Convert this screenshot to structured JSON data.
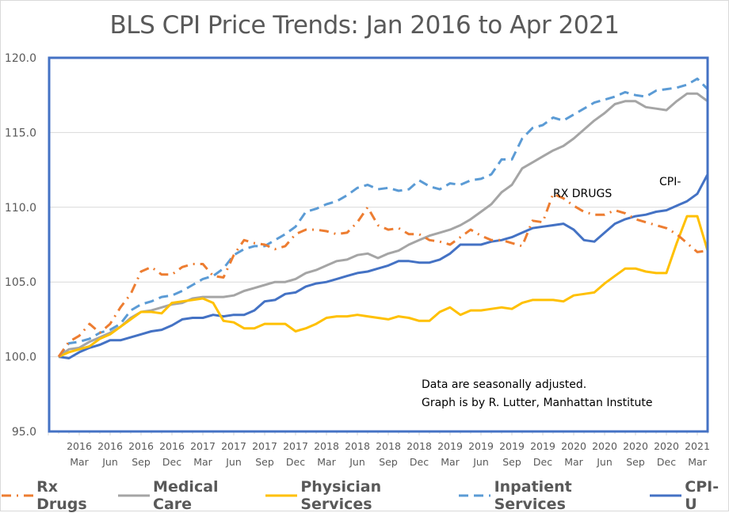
{
  "chart_data": {
    "type": "line",
    "title": "BLS CPI Price Trends: Jan 2016 to Apr 2021",
    "xlabel": "",
    "ylabel": "",
    "ylim": [
      95.0,
      120.0
    ],
    "yticks": [
      "95.0",
      "100.0",
      "105.0",
      "110.0",
      "115.0",
      "120.0"
    ],
    "grid": true,
    "legend_position": "bottom",
    "x": [
      "2016-01",
      "2016-02",
      "2016-03",
      "2016-04",
      "2016-05",
      "2016-06",
      "2016-07",
      "2016-08",
      "2016-09",
      "2016-10",
      "2016-11",
      "2016-12",
      "2017-01",
      "2017-02",
      "2017-03",
      "2017-04",
      "2017-05",
      "2017-06",
      "2017-07",
      "2017-08",
      "2017-09",
      "2017-10",
      "2017-11",
      "2017-12",
      "2018-01",
      "2018-02",
      "2018-03",
      "2018-04",
      "2018-05",
      "2018-06",
      "2018-07",
      "2018-08",
      "2018-09",
      "2018-10",
      "2018-11",
      "2018-12",
      "2019-01",
      "2019-02",
      "2019-03",
      "2019-04",
      "2019-05",
      "2019-06",
      "2019-07",
      "2019-08",
      "2019-09",
      "2019-10",
      "2019-11",
      "2019-12",
      "2020-01",
      "2020-02",
      "2020-03",
      "2020-04",
      "2020-05",
      "2020-06",
      "2020-07",
      "2020-08",
      "2020-09",
      "2020-10",
      "2020-11",
      "2020-12",
      "2021-01",
      "2021-02",
      "2021-03",
      "2021-04"
    ],
    "xtick_labels": [
      {
        "index": 2,
        "year": "2016",
        "month": "Mar"
      },
      {
        "index": 5,
        "year": "2016",
        "month": "Jun"
      },
      {
        "index": 8,
        "year": "2016",
        "month": "Sep"
      },
      {
        "index": 11,
        "year": "2016",
        "month": "Dec"
      },
      {
        "index": 14,
        "year": "2017",
        "month": "Mar"
      },
      {
        "index": 17,
        "year": "2017",
        "month": "Jun"
      },
      {
        "index": 20,
        "year": "2017",
        "month": "Sep"
      },
      {
        "index": 23,
        "year": "2017",
        "month": "Dec"
      },
      {
        "index": 26,
        "year": "2018",
        "month": "Mar"
      },
      {
        "index": 29,
        "year": "2018",
        "month": "Jun"
      },
      {
        "index": 32,
        "year": "2018",
        "month": "Sep"
      },
      {
        "index": 35,
        "year": "2018",
        "month": "Dec"
      },
      {
        "index": 38,
        "year": "2019",
        "month": "Mar"
      },
      {
        "index": 41,
        "year": "2019",
        "month": "Jun"
      },
      {
        "index": 44,
        "year": "2019",
        "month": "Sep"
      },
      {
        "index": 47,
        "year": "2019",
        "month": "Dec"
      },
      {
        "index": 50,
        "year": "2020",
        "month": "Mar"
      },
      {
        "index": 53,
        "year": "2020",
        "month": "Jun"
      },
      {
        "index": 56,
        "year": "2020",
        "month": "Sep"
      },
      {
        "index": 59,
        "year": "2020",
        "month": "Dec"
      },
      {
        "index": 62,
        "year": "2021",
        "month": "Mar"
      }
    ],
    "series": [
      {
        "name": "Rx Drugs",
        "color": "#ED7D31",
        "style": "dash-dot",
        "values": [
          100.0,
          101.0,
          101.4,
          102.2,
          101.6,
          102.2,
          103.3,
          104.2,
          105.7,
          106.0,
          105.5,
          105.5,
          106.0,
          106.2,
          106.2,
          105.4,
          105.3,
          106.8,
          107.8,
          107.6,
          107.5,
          107.2,
          107.4,
          108.2,
          108.5,
          108.5,
          108.4,
          108.2,
          108.3,
          109.0,
          110.0,
          108.8,
          108.5,
          108.6,
          108.2,
          108.2,
          107.8,
          107.7,
          107.5,
          108.0,
          108.5,
          108.1,
          107.8,
          107.8,
          107.6,
          107.4,
          109.1,
          109.0,
          110.9,
          110.6,
          110.1,
          109.7,
          109.5,
          109.5,
          109.8,
          109.6,
          109.2,
          109.0,
          108.8,
          108.6,
          108.2,
          107.6,
          107.0,
          107.1
        ]
      },
      {
        "name": "Medical Care",
        "color": "#A5A5A5",
        "style": "solid",
        "values": [
          100.0,
          100.5,
          100.6,
          101.0,
          101.3,
          101.6,
          102.0,
          102.6,
          103.0,
          103.1,
          103.3,
          103.5,
          103.6,
          103.9,
          104.0,
          104.0,
          104.0,
          104.1,
          104.4,
          104.6,
          104.8,
          105.0,
          105.0,
          105.2,
          105.6,
          105.8,
          106.1,
          106.4,
          106.5,
          106.8,
          106.9,
          106.6,
          106.9,
          107.1,
          107.5,
          107.8,
          108.1,
          108.3,
          108.5,
          108.8,
          109.2,
          109.7,
          110.2,
          111.0,
          111.5,
          112.6,
          113.0,
          113.4,
          113.8,
          114.1,
          114.6,
          115.2,
          115.8,
          116.3,
          116.9,
          117.1,
          117.1,
          116.7,
          116.6,
          116.5,
          117.1,
          117.6,
          117.6,
          117.1
        ]
      },
      {
        "name": "Physician Services",
        "color": "#FFC000",
        "style": "solid",
        "values": [
          100.0,
          100.3,
          100.5,
          100.7,
          101.2,
          101.5,
          102.0,
          102.5,
          103.0,
          103.0,
          102.9,
          103.6,
          103.7,
          103.8,
          103.9,
          103.6,
          102.4,
          102.3,
          101.9,
          101.9,
          102.2,
          102.2,
          102.2,
          101.7,
          101.9,
          102.2,
          102.6,
          102.7,
          102.7,
          102.8,
          102.7,
          102.6,
          102.5,
          102.7,
          102.6,
          102.4,
          102.4,
          103.0,
          103.3,
          102.8,
          103.1,
          103.1,
          103.2,
          103.3,
          103.2,
          103.6,
          103.8,
          103.8,
          103.8,
          103.7,
          104.1,
          104.2,
          104.3,
          104.9,
          105.4,
          105.9,
          105.9,
          105.7,
          105.6,
          105.6,
          107.6,
          109.4,
          109.4,
          107.1
        ]
      },
      {
        "name": "Inpatient Services",
        "color": "#5B9BD5",
        "style": "dashed",
        "values": [
          100.0,
          100.9,
          101.0,
          101.2,
          101.6,
          101.8,
          102.2,
          103.1,
          103.5,
          103.7,
          104.0,
          104.1,
          104.4,
          104.8,
          105.2,
          105.4,
          105.9,
          106.8,
          107.2,
          107.4,
          107.4,
          107.8,
          108.2,
          108.7,
          109.7,
          109.9,
          110.2,
          110.4,
          110.8,
          111.3,
          111.5,
          111.2,
          111.3,
          111.1,
          111.2,
          111.8,
          111.4,
          111.2,
          111.6,
          111.5,
          111.8,
          111.9,
          112.2,
          113.2,
          113.2,
          114.6,
          115.3,
          115.5,
          116.0,
          115.8,
          116.2,
          116.6,
          117.0,
          117.2,
          117.4,
          117.7,
          117.5,
          117.4,
          117.8,
          117.9,
          118.0,
          118.2,
          118.6,
          117.9
        ]
      },
      {
        "name": "CPI-U",
        "color": "#4472C4",
        "style": "solid",
        "values": [
          100.0,
          99.9,
          100.3,
          100.6,
          100.8,
          101.1,
          101.1,
          101.3,
          101.5,
          101.7,
          101.8,
          102.1,
          102.5,
          102.6,
          102.6,
          102.8,
          102.7,
          102.8,
          102.8,
          103.1,
          103.7,
          103.8,
          104.2,
          104.3,
          104.7,
          104.9,
          105.0,
          105.2,
          105.4,
          105.6,
          105.7,
          105.9,
          106.1,
          106.4,
          106.4,
          106.3,
          106.3,
          106.5,
          106.9,
          107.5,
          107.5,
          107.5,
          107.7,
          107.8,
          108.0,
          108.3,
          108.6,
          108.7,
          108.8,
          108.9,
          108.5,
          107.8,
          107.7,
          108.3,
          108.9,
          109.2,
          109.4,
          109.5,
          109.7,
          109.8,
          110.1,
          110.4,
          110.9,
          112.2
        ]
      }
    ],
    "annotations": [
      {
        "text": "RX DRUGS",
        "series": "Rx Drugs"
      },
      {
        "text": "CPI-",
        "series": "CPI-U"
      },
      {
        "text": "Data are seasonally adjusted."
      },
      {
        "text": "Graph is by R. Lutter, Manhattan Institute"
      }
    ]
  }
}
